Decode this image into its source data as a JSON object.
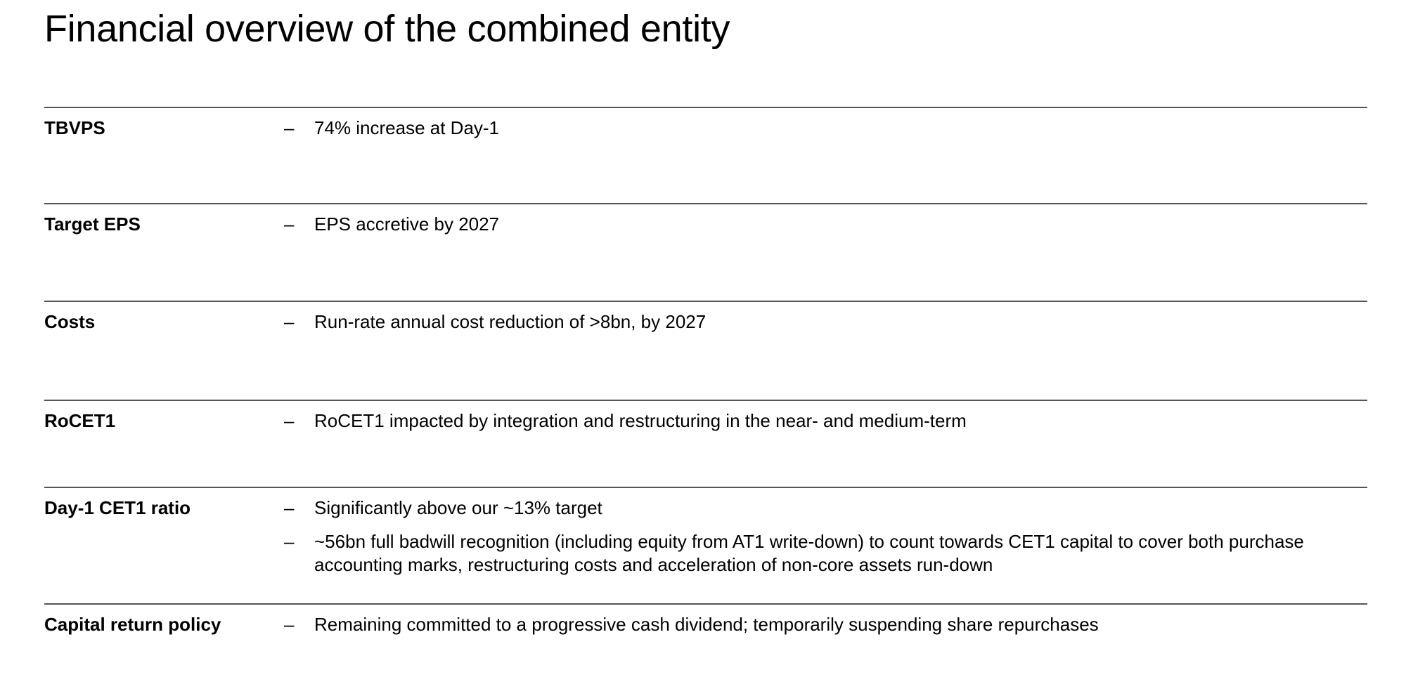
{
  "title": "Financial overview of the combined entity",
  "bullet_marker": "–",
  "rows": [
    {
      "label": "TBVPS",
      "bullets": [
        "74% increase at Day-1"
      ]
    },
    {
      "label": "Target EPS",
      "bullets": [
        "EPS accretive by 2027"
      ]
    },
    {
      "label": "Costs",
      "bullets": [
        "Run-rate annual cost reduction of >8bn, by 2027"
      ]
    },
    {
      "label": "RoCET1",
      "bullets": [
        "RoCET1 impacted by integration and restructuring in the near- and medium-term"
      ]
    },
    {
      "label": "Day-1 CET1 ratio",
      "bullets": [
        "Significantly above our ~13% target",
        "~56bn full badwill recognition (including equity from AT1 write-down) to count towards CET1 capital to cover both purchase accounting marks, restructuring costs and acceleration of non-core assets run-down"
      ]
    },
    {
      "label": "Capital return policy",
      "bullets": [
        "Remaining committed to a progressive cash dividend; temporarily suspending share repurchases"
      ]
    }
  ]
}
